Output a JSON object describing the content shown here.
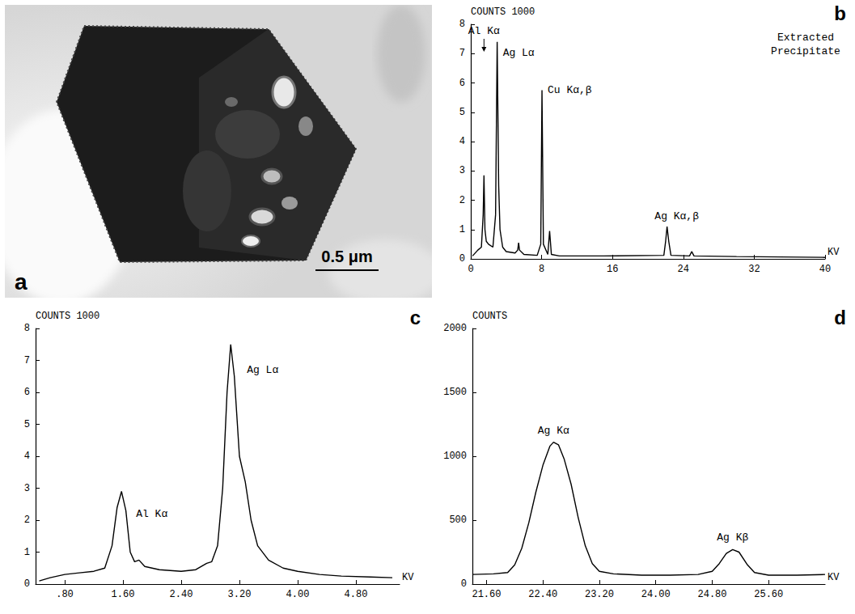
{
  "micrograph": {
    "label": "a",
    "scale_bar": "0.5 μm"
  },
  "chart_data": [
    {
      "type": "line",
      "label": "b",
      "y_label": "COUNTS 1000",
      "x_label": "KV",
      "subtitle": "Extracted Precipitate",
      "color": "#000000",
      "grid": false,
      "xlim": [
        0,
        40
      ],
      "xticks": [
        0,
        8,
        16,
        24,
        32,
        40
      ],
      "ylim": [
        0,
        8
      ],
      "yticks": [
        0,
        1,
        2,
        3,
        4,
        5,
        6,
        7,
        8
      ],
      "x": [
        0.2,
        0.8,
        1.2,
        1.4,
        1.49,
        1.6,
        1.75,
        2.0,
        2.5,
        2.8,
        2.98,
        3.15,
        3.3,
        3.6,
        4.0,
        5.0,
        5.3,
        5.4,
        5.5,
        6.0,
        7.5,
        7.9,
        8.04,
        8.2,
        8.7,
        8.9,
        9.1,
        10,
        15,
        21.8,
        22.0,
        22.16,
        22.35,
        22.6,
        24.7,
        24.94,
        25.2,
        30,
        40
      ],
      "values": [
        0.1,
        0.3,
        0.4,
        1.5,
        2.85,
        1.0,
        0.6,
        0.5,
        0.4,
        1.5,
        7.4,
        2.5,
        1.0,
        0.4,
        0.25,
        0.2,
        0.3,
        0.55,
        0.3,
        0.15,
        0.12,
        0.5,
        5.75,
        0.5,
        0.15,
        0.95,
        0.15,
        0.1,
        0.1,
        0.12,
        0.6,
        1.1,
        0.6,
        0.12,
        0.1,
        0.25,
        0.1,
        0.08,
        0.05
      ],
      "annotations": [
        {
          "text": "Al Kα",
          "x": 1.49,
          "y": 2.85
        },
        {
          "text": "Ag Lα",
          "x": 2.98,
          "y": 7.4
        },
        {
          "text": "Cu Kα,β",
          "x": 8.04,
          "y": 5.75
        },
        {
          "text": "Ag Kα,β",
          "x": 22.16,
          "y": 1.1
        }
      ]
    },
    {
      "type": "line",
      "label": "c",
      "y_label": "COUNTS 1000",
      "x_label": "KV",
      "color": "#000000",
      "grid": false,
      "xlim": [
        0.4,
        5.4
      ],
      "xticks": [
        {
          "value": 0.8,
          "label": ".80"
        },
        {
          "value": 1.6,
          "label": "1.60"
        },
        {
          "value": 2.4,
          "label": "2.40"
        },
        {
          "value": 3.2,
          "label": "3.20"
        },
        {
          "value": 4,
          "label": "4.00"
        },
        {
          "value": 4.8,
          "label": "4.80"
        }
      ],
      "ylim": [
        0,
        8
      ],
      "yticks": [
        0,
        1,
        2,
        3,
        4,
        5,
        6,
        7,
        8
      ],
      "x": [
        0.45,
        0.6,
        0.8,
        1.0,
        1.2,
        1.35,
        1.45,
        1.52,
        1.58,
        1.64,
        1.7,
        1.76,
        1.82,
        1.9,
        2.1,
        2.4,
        2.6,
        2.75,
        2.82,
        2.9,
        2.97,
        3.03,
        3.08,
        3.13,
        3.2,
        3.28,
        3.36,
        3.45,
        3.6,
        3.8,
        4.0,
        4.3,
        4.6,
        5.0,
        5.3
      ],
      "values": [
        0.1,
        0.2,
        0.3,
        0.35,
        0.4,
        0.5,
        1.2,
        2.4,
        2.9,
        2.3,
        1.0,
        0.7,
        0.75,
        0.55,
        0.45,
        0.4,
        0.45,
        0.65,
        0.7,
        1.2,
        3.0,
        6.0,
        7.5,
        6.5,
        4.0,
        3.2,
        2.0,
        1.2,
        0.75,
        0.5,
        0.4,
        0.3,
        0.25,
        0.22,
        0.2
      ],
      "annotations": [
        {
          "text": "Al Kα",
          "x": 1.58,
          "y": 2.9
        },
        {
          "text": "Ag Lα",
          "x": 3.08,
          "y": 7.5
        }
      ]
    },
    {
      "type": "line",
      "label": "d",
      "y_label": "COUNTS",
      "x_label": "KV",
      "color": "#000000",
      "grid": false,
      "xlim": [
        21.4,
        26.4
      ],
      "xticks": [
        {
          "value": 21.6,
          "label": "21.60"
        },
        {
          "value": 22.4,
          "label": "22.40"
        },
        {
          "value": 23.2,
          "label": "23.20"
        },
        {
          "value": 24,
          "label": "24.00"
        },
        {
          "value": 24.8,
          "label": "24.80"
        },
        {
          "value": 25.6,
          "label": "25.60"
        }
      ],
      "ylim": [
        0,
        2000
      ],
      "yticks": [
        0,
        500,
        1000,
        1500,
        2000
      ],
      "x": [
        21.4,
        21.7,
        21.9,
        22.0,
        22.1,
        22.2,
        22.3,
        22.4,
        22.5,
        22.55,
        22.62,
        22.7,
        22.8,
        22.9,
        23.0,
        23.1,
        23.2,
        23.4,
        23.8,
        24.2,
        24.6,
        24.8,
        24.9,
        25.0,
        25.09,
        25.18,
        25.3,
        25.4,
        25.6,
        26.0,
        26.4
      ],
      "values": [
        75,
        80,
        90,
        150,
        280,
        480,
        720,
        930,
        1080,
        1110,
        1090,
        980,
        780,
        520,
        300,
        160,
        100,
        80,
        70,
        70,
        75,
        100,
        160,
        240,
        270,
        250,
        150,
        90,
        70,
        70,
        75
      ],
      "annotations": [
        {
          "text": "Ag Kα",
          "x": 22.55,
          "y": 1110
        },
        {
          "text": "Ag Kβ",
          "x": 25.09,
          "y": 270
        }
      ]
    }
  ]
}
